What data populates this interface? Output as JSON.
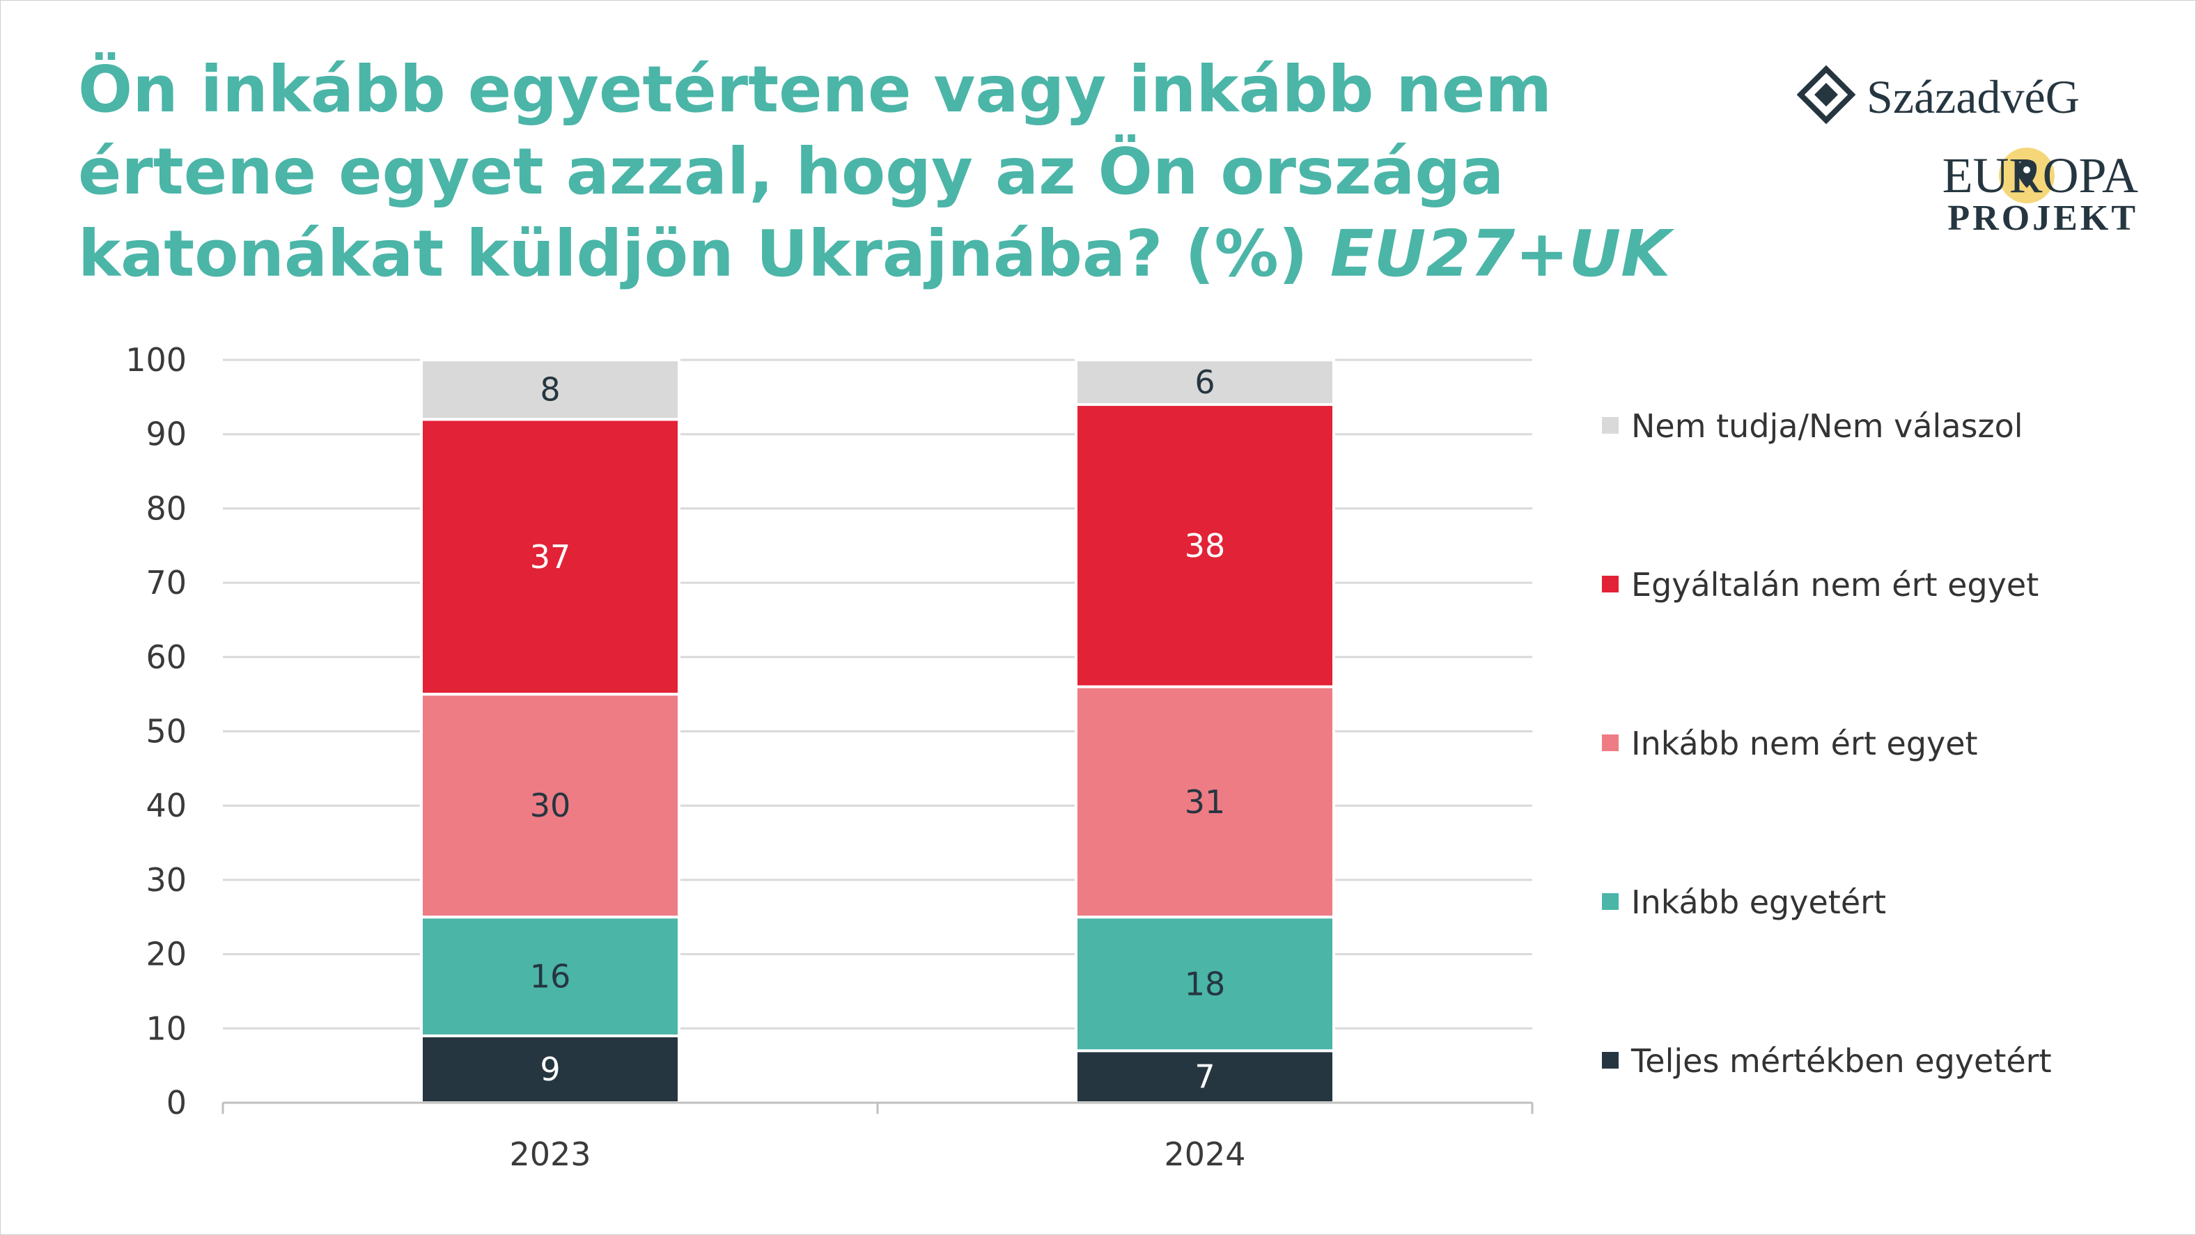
{
  "title": {
    "main": "Ön inkább egyetértene vagy inkább nem értene egyet azzal, hogy az Ön országa katonákat küldjön Ukrajnába? (%)",
    "sub": "EU27+UK"
  },
  "logo": {
    "brand_name": "SzázadvéG",
    "project_line1": "EUROPA",
    "project_line2": "PROJEKT",
    "icon": "diamond-knot-icon",
    "pin_icon": "map-pin-icon"
  },
  "chart_data": {
    "type": "bar",
    "stacked": true,
    "categories": [
      "2023",
      "2024"
    ],
    "ylim": [
      0,
      100
    ],
    "yticks": [
      0,
      10,
      20,
      30,
      40,
      50,
      60,
      70,
      80,
      90,
      100
    ],
    "grid": true,
    "legend_position": "right",
    "xlabel": "",
    "ylabel": "",
    "series": [
      {
        "name": "Teljes mértékben egyetért",
        "values": [
          9,
          7
        ],
        "color": "#263640",
        "label_color": "#ffffff"
      },
      {
        "name": "Inkább egyetért",
        "values": [
          16,
          18
        ],
        "color": "#4bb5a8",
        "label_color": "#263640"
      },
      {
        "name": "Inkább nem ért egyet",
        "values": [
          30,
          31
        ],
        "color": "#ee7c85",
        "label_color": "#263640"
      },
      {
        "name": "Egyáltalán nem ért egyet",
        "values": [
          37,
          38
        ],
        "color": "#e22236",
        "label_color": "#ffffff"
      },
      {
        "name": "Nem tudja/Nem válaszol",
        "values": [
          8,
          6
        ],
        "color": "#d9d9d9",
        "label_color": "#263640"
      }
    ]
  }
}
